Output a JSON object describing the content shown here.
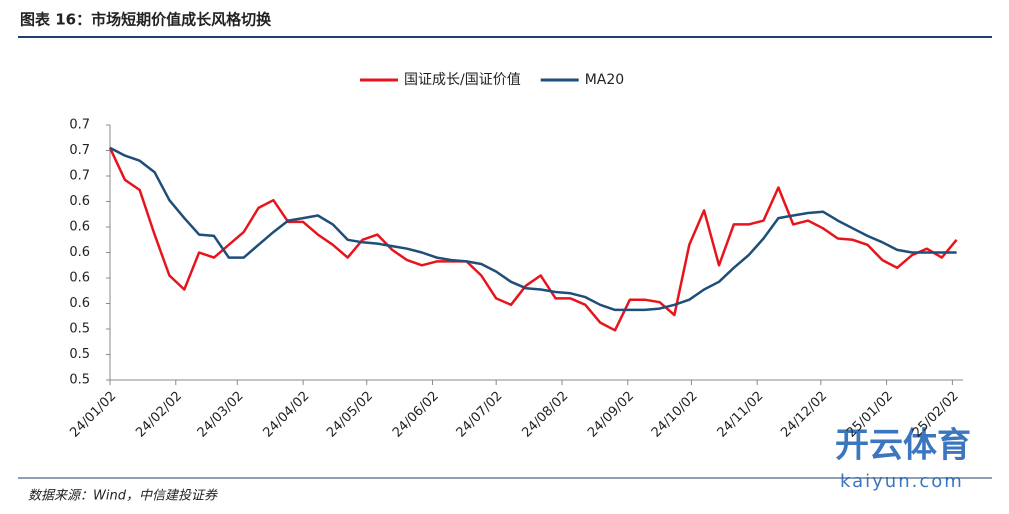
{
  "header": {
    "title": "图表 16：市场短期价值成长风格切换"
  },
  "chart_data": {
    "type": "line",
    "x": [
      "24/01/02",
      "24/01/09",
      "24/01/16",
      "24/01/23",
      "24/01/30",
      "24/02/06",
      "24/02/13",
      "24/02/20",
      "24/02/27",
      "24/03/05",
      "24/03/12",
      "24/03/19",
      "24/03/26",
      "24/04/02",
      "24/04/09",
      "24/04/16",
      "24/04/23",
      "24/04/30",
      "24/05/07",
      "24/05/14",
      "24/05/21",
      "24/05/28",
      "24/06/04",
      "24/06/11",
      "24/06/18",
      "24/06/25",
      "24/07/02",
      "24/07/09",
      "24/07/16",
      "24/07/23",
      "24/07/30",
      "24/08/06",
      "24/08/13",
      "24/08/20",
      "24/08/27",
      "24/09/03",
      "24/09/10",
      "24/09/17",
      "24/09/24",
      "24/10/01",
      "24/10/08",
      "24/10/15",
      "24/10/22",
      "24/10/29",
      "24/11/05",
      "24/11/12",
      "24/11/19",
      "24/11/26",
      "24/12/03",
      "24/12/10",
      "24/12/17",
      "24/12/24",
      "24/12/31",
      "25/01/07",
      "25/01/14",
      "25/01/21",
      "25/01/28",
      "25/02/04"
    ],
    "series": [
      {
        "name": "国证成长/国证价值",
        "color": "#e8141c",
        "values": [
          0.682,
          0.657,
          0.649,
          0.614,
          0.582,
          0.571,
          0.6,
          0.596,
          0.606,
          0.616,
          0.635,
          0.641,
          0.624,
          0.624,
          0.614,
          0.606,
          0.596,
          0.61,
          0.614,
          0.602,
          0.594,
          0.59,
          0.593,
          0.593,
          0.593,
          0.582,
          0.564,
          0.559,
          0.574,
          0.582,
          0.564,
          0.564,
          0.559,
          0.545,
          0.539,
          0.563,
          0.563,
          0.561,
          0.551,
          0.606,
          0.633,
          0.59,
          0.622,
          0.622,
          0.625,
          0.651,
          0.622,
          0.625,
          0.619,
          0.611,
          0.61,
          0.606,
          0.594,
          0.588,
          0.598,
          0.603,
          0.596,
          0.61
        ]
      },
      {
        "name": "MA20",
        "color": "#1f4e79",
        "values": [
          0.682,
          0.676,
          0.672,
          0.663,
          0.641,
          0.627,
          0.614,
          0.613,
          0.596,
          0.596,
          0.606,
          0.616,
          0.625,
          0.627,
          0.629,
          0.622,
          0.61,
          0.608,
          0.607,
          0.605,
          0.603,
          0.6,
          0.596,
          0.594,
          0.593,
          0.591,
          0.585,
          0.577,
          0.572,
          0.571,
          0.569,
          0.568,
          0.565,
          0.559,
          0.555,
          0.555,
          0.555,
          0.556,
          0.559,
          0.563,
          0.571,
          0.577,
          0.588,
          0.598,
          0.611,
          0.627,
          0.629,
          0.631,
          0.632,
          0.625,
          0.619,
          0.613,
          0.608,
          0.602,
          0.6,
          0.6,
          0.6,
          0.6
        ]
      }
    ],
    "xticks": [
      "24/01/02",
      "24/02/02",
      "24/03/02",
      "24/04/02",
      "24/05/02",
      "24/06/02",
      "24/07/02",
      "24/08/02",
      "24/09/02",
      "24/10/02",
      "24/11/02",
      "24/12/02",
      "25/01/02",
      "25/02/02"
    ],
    "xlim": [
      "24/01/02",
      "25/02/07"
    ],
    "ylim": [
      0.5,
      0.7
    ],
    "yticks": [
      0.5,
      {
        "value": 0.52,
        "label": "0.5"
      },
      {
        "value": 0.54,
        "label": "0.5"
      },
      {
        "value": 0.56,
        "label": "0.6"
      },
      {
        "value": 0.58,
        "label": "0.6"
      },
      0.6,
      {
        "value": 0.62,
        "label": "0.6"
      },
      {
        "value": 0.64,
        "label": "0.6"
      },
      {
        "value": 0.66,
        "label": "0.7"
      },
      {
        "value": 0.68,
        "label": "0.7"
      },
      0.7
    ],
    "legend": "top"
  },
  "source": "数据来源：Wind，中信建投证券",
  "watermark": {
    "name": "开云体育",
    "site": "kaiyun.com"
  }
}
